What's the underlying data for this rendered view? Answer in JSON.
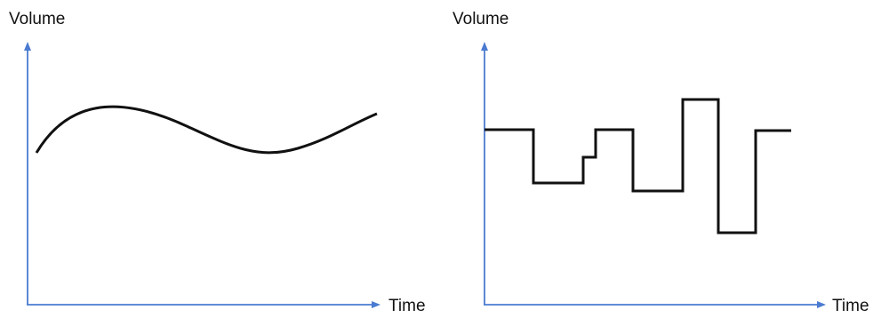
{
  "colors": {
    "axis": "#4a7bd0",
    "curve": "#111111",
    "text": "#111111",
    "background": "#ffffff"
  },
  "left_panel": {
    "y_axis_label": "Volume",
    "x_axis_label": "Time",
    "curve_kind": "smooth-continuous"
  },
  "right_panel": {
    "y_axis_label": "Volume",
    "x_axis_label": "Time",
    "curve_kind": "stepwise-discrete"
  }
}
